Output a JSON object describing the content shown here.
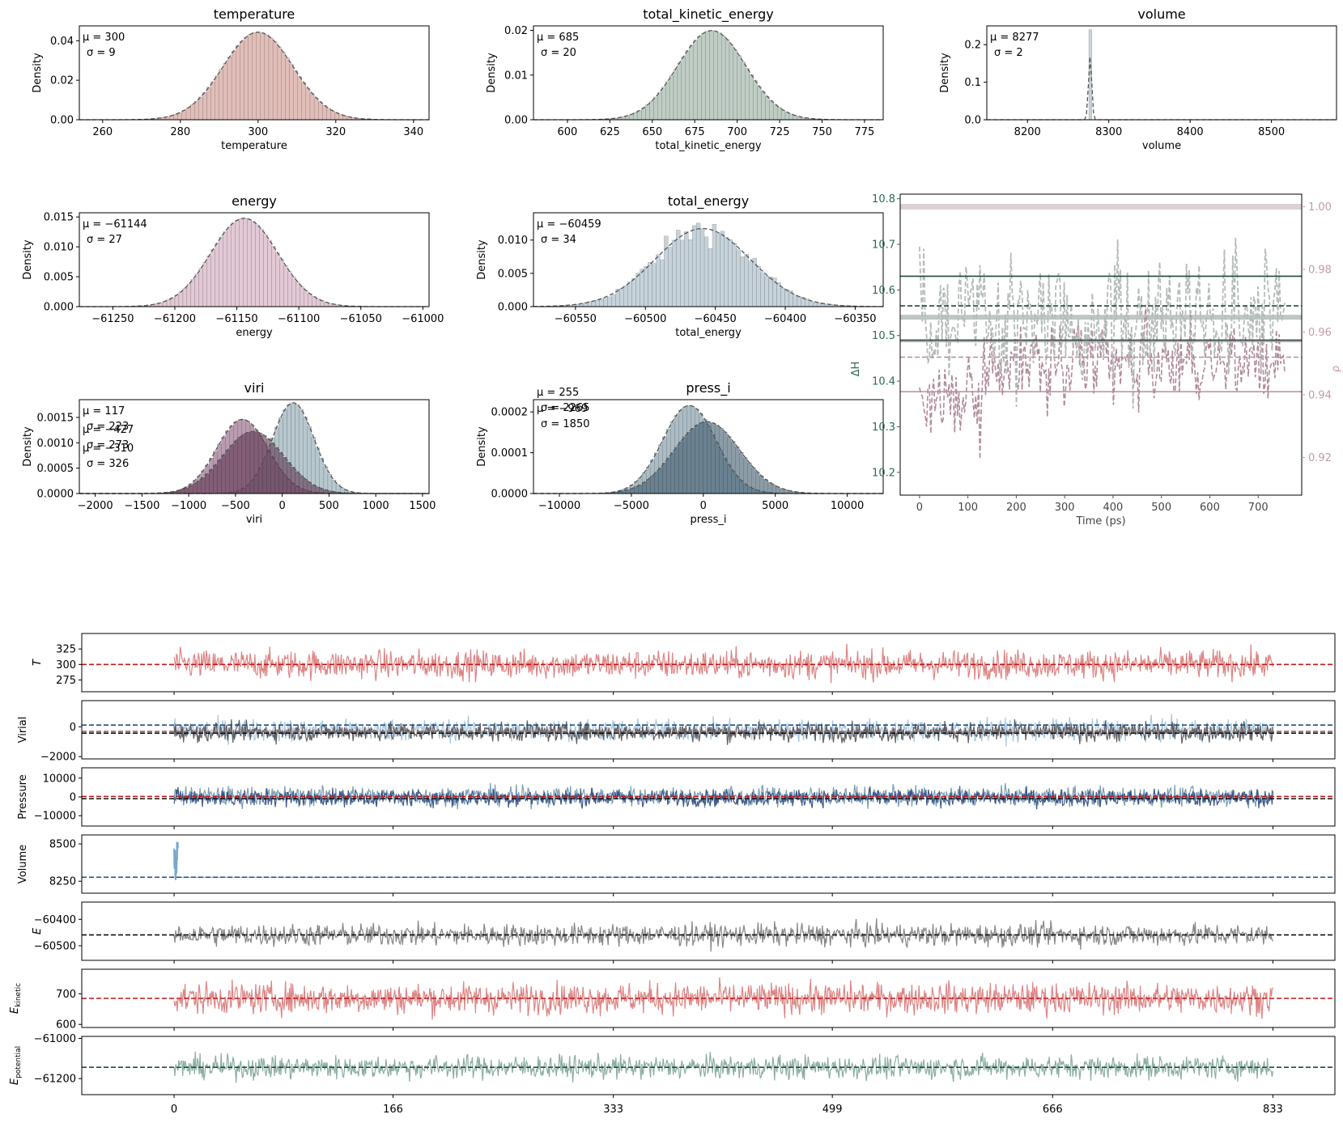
{
  "colors": {
    "temperature": "#d8a8a2",
    "total_kinetic_energy": "#a9bcb2",
    "volume": "#b4c6cc",
    "energy": "#d9b6c8",
    "total_energy": "#b3c4cf",
    "viri": [
      "#9fb4be",
      "#8a5a7a",
      "#5e3650"
    ],
    "press_i": [
      "#8fa6b2",
      "#3e5a6c"
    ],
    "gauss": "#555555",
    "dh_axis": "#2d6b55",
    "ratio_axis": "#c49aaa",
    "T_series": "#d97878",
    "T_ref": "#c01818",
    "virial_series": "#505050",
    "virial_series2": "#9ec2d8",
    "pressure_series": "#2e4a7e",
    "pressure_series2": "#6f93ad",
    "volume_series": "#7aa8cc",
    "blue_ref": "#1f4f8a",
    "E_series": "#7a7a7a",
    "black_ref": "#111111",
    "Ekin_series": "#d97878",
    "Epot_series": "#7fa598",
    "green_ref": "#1f4f3f"
  },
  "chart_data": [
    {
      "id": "hist-temperature",
      "type": "histogram",
      "title": "temperature",
      "xlabel": "temperature",
      "ylabel": "Density",
      "xlim": [
        254,
        344
      ],
      "ylim": [
        0,
        0.0475
      ],
      "xticks": [
        260,
        280,
        300,
        320,
        340
      ],
      "yticks": [
        0.0,
        0.02,
        0.04
      ],
      "ytick_labels": [
        "0.00",
        "0.02",
        "0.04"
      ],
      "series": [
        {
          "mu": 300,
          "sigma": 9,
          "range": [
            256,
            341
          ]
        }
      ],
      "annotations": [
        "μ = 300",
        "σ = 9"
      ]
    },
    {
      "id": "hist-total-kinetic",
      "type": "histogram",
      "title": "total_kinetic_energy",
      "xlabel": "total_kinetic_energy",
      "ylabel": "Density",
      "xlim": [
        580,
        786
      ],
      "ylim": [
        0,
        0.021
      ],
      "xticks": [
        600,
        625,
        650,
        675,
        700,
        725,
        750,
        775
      ],
      "yticks": [
        0.0,
        0.01,
        0.02
      ],
      "ytick_labels": [
        "0.00",
        "0.01",
        "0.02"
      ],
      "series": [
        {
          "mu": 685,
          "sigma": 20,
          "range": [
            592,
            780
          ]
        }
      ],
      "annotations": [
        "μ = 685",
        "σ = 20"
      ]
    },
    {
      "id": "hist-volume",
      "type": "histogram",
      "title": "volume",
      "xlabel": "volume",
      "ylabel": "Density",
      "xlim": [
        8150,
        8580
      ],
      "ylim": [
        0,
        0.25
      ],
      "xticks": [
        8200,
        8300,
        8400,
        8500
      ],
      "yticks": [
        0.0,
        0.1,
        0.2
      ],
      "ytick_labels": [
        "0.0",
        "0.1",
        "0.2"
      ],
      "series": [
        {
          "mu": 8277,
          "sigma": 2,
          "range": [
            8165,
            8570
          ],
          "peak": 0.24
        }
      ],
      "annotations": [
        "μ = 8277",
        "σ = 2"
      ]
    },
    {
      "id": "hist-energy",
      "type": "histogram",
      "title": "energy",
      "xlabel": "energy",
      "ylabel": "Density",
      "xlim": [
        -61277,
        -60995
      ],
      "ylim": [
        0,
        0.0157
      ],
      "xticks": [
        -61250,
        -61200,
        -61150,
        -61100,
        -61050,
        -61000
      ],
      "xtick_labels": [
        "−61250",
        "−61200",
        "−61150",
        "−61100",
        "−61050",
        "−61000"
      ],
      "yticks": [
        0.0,
        0.005,
        0.01,
        0.015
      ],
      "ytick_labels": [
        "0.000",
        "0.005",
        "0.010",
        "0.015"
      ],
      "series": [
        {
          "mu": -61144,
          "sigma": 27,
          "range": [
            -61265,
            -61005
          ]
        }
      ],
      "annotations": [
        "μ = −61144",
        "σ = 27"
      ]
    },
    {
      "id": "hist-total-energy",
      "type": "histogram",
      "title": "total_energy",
      "xlabel": "total_energy",
      "ylabel": "Density",
      "xlim": [
        -60580,
        -60330
      ],
      "ylim": [
        0,
        0.0141
      ],
      "xticks": [
        -60550,
        -60500,
        -60450,
        -60400,
        -60350
      ],
      "xtick_labels": [
        "−60550",
        "−60500",
        "−60450",
        "−60400",
        "−60350"
      ],
      "yticks": [
        0.0,
        0.005,
        0.01
      ],
      "ytick_labels": [
        "0.000",
        "0.005",
        "0.010"
      ],
      "series": [
        {
          "mu": -60459,
          "sigma": 34,
          "range": [
            -60570,
            -60340
          ],
          "noisy": true
        }
      ],
      "annotations": [
        "μ = −60459",
        "σ = 34"
      ]
    },
    {
      "id": "hist-viri",
      "type": "histogram",
      "title": "viri",
      "xlabel": "viri",
      "ylabel": "Density",
      "xlim": [
        -2170,
        1570
      ],
      "ylim": [
        0,
        0.00185
      ],
      "xticks": [
        -2000,
        -1500,
        -1000,
        -500,
        0,
        500,
        1000,
        1500
      ],
      "xtick_labels": [
        "−2000",
        "−1500",
        "−1000",
        "−500",
        "0",
        "500",
        "1000",
        "1500"
      ],
      "yticks": [
        0.0,
        0.0005,
        0.001,
        0.0015
      ],
      "ytick_labels": [
        "0.0000",
        "0.0005",
        "0.0010",
        "0.0015"
      ],
      "series": [
        {
          "mu": 117,
          "sigma": 223,
          "range": [
            -2050,
            1450
          ]
        },
        {
          "mu": -427,
          "sigma": 273,
          "range": [
            -2050,
            1450
          ]
        },
        {
          "mu": -310,
          "sigma": 326,
          "range": [
            -2050,
            1450
          ]
        }
      ],
      "annotations": [
        "μ = 117",
        "σ = 223",
        "μ = −427",
        "σ = 273",
        "μ = −310",
        "σ = 326"
      ]
    },
    {
      "id": "hist-press-i",
      "type": "histogram",
      "title": "press_i",
      "xlabel": "press_i",
      "ylabel": "Density",
      "xlim": [
        -11800,
        12500
      ],
      "ylim": [
        0,
        0.00023
      ],
      "xticks": [
        -10000,
        -5000,
        0,
        5000,
        10000
      ],
      "xtick_labels": [
        "−10000",
        "−5000",
        "0",
        "5000",
        "10000"
      ],
      "yticks": [
        0.0,
        0.0001,
        0.0002
      ],
      "ytick_labels": [
        "0.0000",
        "0.0001",
        "0.0002"
      ],
      "series": [
        {
          "mu": -969,
          "sigma": 1850,
          "range": [
            -11000,
            11500
          ]
        },
        {
          "mu": 255,
          "sigma": 2265,
          "range": [
            -11000,
            11500
          ]
        }
      ],
      "annotations": [
        "μ = 255",
        "σ = 2265",
        "μ = −969",
        "σ = 1850"
      ]
    },
    {
      "id": "dual-axis-dh",
      "type": "line",
      "xlabel": "Time (ps)",
      "ylabel_left": "ΔH",
      "ylabel_right": "ρ",
      "xlim": [
        -40,
        790
      ],
      "ylim_left": [
        10.15,
        10.81
      ],
      "ylim_right": [
        0.908,
        1.004
      ],
      "xticks": [
        0,
        100,
        200,
        300,
        400,
        500,
        600,
        700
      ],
      "yticks_left": [
        10.2,
        10.3,
        10.4,
        10.5,
        10.6,
        10.7,
        10.8
      ],
      "ytick_labels_left": [
        "10.2",
        "10.3",
        "10.4",
        "10.5",
        "10.6",
        "10.7",
        "10.8"
      ],
      "yticks_right": [
        0.92,
        0.94,
        0.96,
        0.98,
        1.0
      ],
      "ytick_labels_right": [
        "0.92",
        "0.94",
        "0.96",
        "0.98",
        "1.00"
      ],
      "time_range": [
        0,
        755
      ],
      "dh_mean": 10.54,
      "dh_ref_dashed": 10.565,
      "dh_upper": 10.63,
      "dh_lower": 10.49,
      "ratio_ref": 1.0,
      "ratio_upper": 0.957,
      "ratio_mean": 0.952,
      "ratio_lower": 0.941
    },
    {
      "id": "ts-T",
      "type": "line",
      "ylabel": "T",
      "ylim": [
        256,
        350
      ],
      "yticks": [
        275,
        300,
        325
      ],
      "ref": 300,
      "mean": 300,
      "amp": 22
    },
    {
      "id": "ts-virial",
      "type": "line",
      "ylabel": "Virial",
      "ylim": [
        -2150,
        1750
      ],
      "yticks": [
        -2000,
        0
      ],
      "ytick_labels": [
        "−2000",
        "0"
      ],
      "ref": [
        117,
        -310,
        -427
      ],
      "mean": -350,
      "amp": 600
    },
    {
      "id": "ts-pressure",
      "type": "line",
      "ylabel": "Pressure",
      "ylim": [
        -15500,
        15500
      ],
      "yticks": [
        -10000,
        0,
        10000
      ],
      "ytick_labels": [
        "−10000",
        "0",
        "10000"
      ],
      "ref": [
        255,
        -969
      ],
      "mean": -500,
      "amp": 4300
    },
    {
      "id": "ts-volume",
      "type": "line",
      "ylabel": "Volume",
      "ylim": [
        8170,
        8560
      ],
      "yticks": [
        8250,
        8500
      ],
      "ref": 8277,
      "mean": 8277,
      "amp": 4
    },
    {
      "id": "ts-E",
      "type": "line",
      "ylabel": "E",
      "ylim": [
        -60555,
        -60335
      ],
      "yticks": [
        -60500,
        -60400
      ],
      "ytick_labels": [
        "−60500",
        "−60400"
      ],
      "ref": -60459,
      "mean": -60459,
      "amp": 40
    },
    {
      "id": "ts-Ekin",
      "type": "line",
      "ylabel": "E",
      "ylabel_sub": "kinetic",
      "ylim": [
        590,
        780
      ],
      "yticks": [
        600,
        700
      ],
      "ref": 685,
      "mean": 685,
      "amp": 48
    },
    {
      "id": "ts-Epot",
      "type": "line",
      "ylabel": "E",
      "ylabel_sub": "potential",
      "ylim": [
        -61280,
        -60990
      ],
      "yticks": [
        -61200,
        -61000
      ],
      "ytick_labels": [
        "−61200",
        "−61000"
      ],
      "ref": -61144,
      "mean": -61144,
      "amp": 55
    }
  ],
  "shared_x": {
    "xlim": [
      -70,
      880
    ],
    "data_range": [
      0,
      833
    ],
    "xticks": [
      0,
      166,
      333,
      499,
      666,
      833
    ]
  }
}
